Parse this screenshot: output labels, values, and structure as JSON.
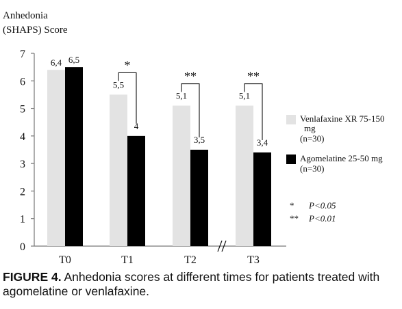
{
  "chart_data": {
    "type": "bar",
    "ylabel_line1": "Anhedonia",
    "ylabel_line2": "(SHAPS) Score",
    "ylim": [
      0,
      7
    ],
    "yticks": [
      "0",
      "1",
      "2",
      "3",
      "4",
      "5",
      "6",
      "7"
    ],
    "categories": [
      "T0",
      "T1",
      "T2",
      "T3"
    ],
    "series": [
      {
        "name_line1": "Venlafaxine XR 75-150",
        "name_line2": "mg",
        "name_line3": "(n=30)",
        "values": [
          6.4,
          5.5,
          5.1,
          5.1
        ],
        "labels": [
          "6,4",
          "5,5",
          "5,1",
          "5,1"
        ],
        "color": "#e3e3e3"
      },
      {
        "name_line1": "Agomelatine 25-50 mg",
        "name_line2": "(n=30)",
        "values": [
          6.5,
          4.0,
          3.5,
          3.4
        ],
        "labels": [
          "6,5",
          "4",
          "3,5",
          "3,4"
        ],
        "color": "#000000"
      }
    ],
    "significance": [
      "",
      "*",
      "**",
      "**"
    ],
    "significance_key": [
      {
        "symbol": "*",
        "text": "P<0.05"
      },
      {
        "symbol": "**",
        "text": "P<0.01"
      }
    ],
    "grid": false,
    "legend_position": "right"
  },
  "caption": {
    "label": "FIGURE 4.",
    "text": " Anhedonia scores at different times for patients treated with agomelatine or venlafaxine."
  }
}
